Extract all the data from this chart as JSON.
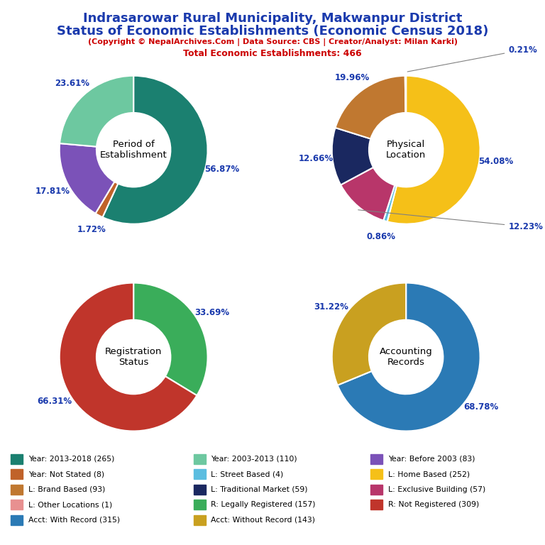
{
  "title_line1": "Indrasarowar Rural Municipality, Makwanpur District",
  "title_line2": "Status of Economic Establishments (Economic Census 2018)",
  "subtitle": "(Copyright © NepalArchives.Com | Data Source: CBS | Creator/Analyst: Milan Karki)",
  "subtitle2": "Total Economic Establishments: 466",
  "donut1": {
    "label": "Period of\nEstablishment",
    "values": [
      56.87,
      1.72,
      17.81,
      23.61
    ],
    "colors": [
      "#1b8070",
      "#c0622a",
      "#7b52b8",
      "#6dc8a0"
    ],
    "pct_labels": [
      "56.87%",
      "1.72%",
      "17.81%",
      "23.61%"
    ]
  },
  "donut2": {
    "label": "Physical\nLocation",
    "values": [
      54.08,
      0.86,
      12.23,
      12.66,
      19.96,
      0.21
    ],
    "colors": [
      "#f5c018",
      "#5bbde0",
      "#b8366a",
      "#1a2860",
      "#c07830",
      "#e8b4c0"
    ],
    "pct_labels": [
      "54.08%",
      "0.86%",
      "12.23%",
      "12.66%",
      "19.96%",
      "0.21%"
    ]
  },
  "donut3": {
    "label": "Registration\nStatus",
    "values": [
      33.69,
      66.31
    ],
    "colors": [
      "#3aad5a",
      "#c0352b"
    ],
    "pct_labels": [
      "33.69%",
      "66.31%"
    ]
  },
  "donut4": {
    "label": "Accounting\nRecords",
    "values": [
      68.78,
      31.22
    ],
    "colors": [
      "#2b7ab5",
      "#c9a020"
    ],
    "pct_labels": [
      "68.78%",
      "31.22%"
    ]
  },
  "legend_col1": [
    {
      "label": "Year: 2013-2018 (265)",
      "color": "#1b8070"
    },
    {
      "label": "Year: Not Stated (8)",
      "color": "#c0622a"
    },
    {
      "label": "L: Brand Based (93)",
      "color": "#c07830"
    },
    {
      "label": "L: Other Locations (1)",
      "color": "#e89090"
    },
    {
      "label": "Acct: With Record (315)",
      "color": "#2b7ab5"
    }
  ],
  "legend_col2": [
    {
      "label": "Year: 2003-2013 (110)",
      "color": "#6dc8a0"
    },
    {
      "label": "L: Street Based (4)",
      "color": "#5bbde0"
    },
    {
      "label": "L: Traditional Market (59)",
      "color": "#1a2860"
    },
    {
      "label": "R: Legally Registered (157)",
      "color": "#3aad5a"
    },
    {
      "label": "Acct: Without Record (143)",
      "color": "#c9a020"
    }
  ],
  "legend_col3": [
    {
      "label": "Year: Before 2003 (83)",
      "color": "#7b52b8"
    },
    {
      "label": "L: Home Based (252)",
      "color": "#f5c018"
    },
    {
      "label": "L: Exclusive Building (57)",
      "color": "#b8366a"
    },
    {
      "label": "R: Not Registered (309)",
      "color": "#c0352b"
    }
  ],
  "title_color": "#1a3aad",
  "subtitle_color": "#cc0000",
  "pct_color": "#1a3aad"
}
